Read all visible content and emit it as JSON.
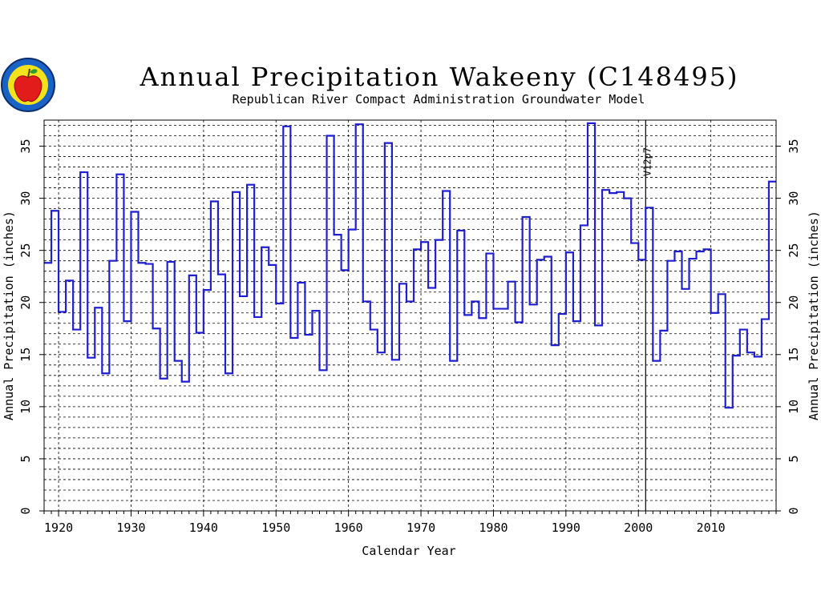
{
  "chart_data": {
    "type": "line",
    "step": true,
    "title": "Annual Precipitation Wakeeny (C148495)",
    "subtitle": "Republican River Compact Administration Groundwater Model",
    "xlabel": "Calendar Year",
    "ylabel": "Annual Precipitation (inches)",
    "y2label": "Annual Precipitation (inches)",
    "xlim": [
      1918,
      2019
    ],
    "ylim": [
      0,
      37.5
    ],
    "grid": true,
    "xticks": [
      "1920",
      "1930",
      "1940",
      "1950",
      "1960",
      "1970",
      "1980",
      "1990",
      "2000",
      "2010"
    ],
    "yticks": [
      "0",
      "5",
      "10",
      "15",
      "20",
      "25",
      "30",
      "35"
    ],
    "series_color": "#1f1fcf",
    "annotation": {
      "label": "V12p7",
      "x": 2001
    },
    "x": [
      1918,
      1919,
      1920,
      1921,
      1922,
      1923,
      1924,
      1925,
      1926,
      1927,
      1928,
      1929,
      1930,
      1931,
      1932,
      1933,
      1934,
      1935,
      1936,
      1937,
      1938,
      1939,
      1940,
      1941,
      1942,
      1943,
      1944,
      1945,
      1946,
      1947,
      1948,
      1949,
      1950,
      1951,
      1952,
      1953,
      1954,
      1955,
      1956,
      1957,
      1958,
      1959,
      1960,
      1961,
      1962,
      1963,
      1964,
      1965,
      1966,
      1967,
      1968,
      1969,
      1970,
      1971,
      1972,
      1973,
      1974,
      1975,
      1976,
      1977,
      1978,
      1979,
      1980,
      1981,
      1982,
      1983,
      1984,
      1985,
      1986,
      1987,
      1988,
      1989,
      1990,
      1991,
      1992,
      1993,
      1994,
      1995,
      1996,
      1997,
      1998,
      1999,
      2000,
      2001,
      2002,
      2003,
      2004,
      2005,
      2006,
      2007,
      2008,
      2009,
      2010,
      2011,
      2012,
      2013,
      2014,
      2015,
      2016,
      2017,
      2018
    ],
    "values": [
      23.8,
      28.8,
      19.1,
      22.1,
      17.4,
      32.5,
      14.7,
      19.5,
      13.2,
      24.0,
      32.3,
      18.2,
      28.7,
      23.8,
      23.7,
      17.5,
      12.7,
      23.9,
      14.4,
      12.4,
      22.6,
      17.1,
      21.2,
      29.7,
      22.7,
      13.2,
      30.6,
      20.6,
      31.3,
      18.6,
      25.3,
      23.6,
      19.9,
      36.9,
      16.6,
      21.9,
      16.9,
      19.2,
      13.5,
      36.0,
      26.5,
      23.1,
      27.0,
      37.1,
      20.1,
      17.4,
      15.2,
      35.3,
      14.5,
      21.8,
      20.1,
      25.1,
      25.8,
      21.4,
      26.0,
      30.7,
      14.4,
      26.9,
      18.8,
      20.1,
      18.5,
      24.7,
      19.4,
      19.4,
      22.0,
      18.1,
      28.2,
      19.8,
      24.1,
      24.4,
      15.9,
      18.9,
      24.8,
      18.2,
      27.4,
      37.2,
      17.8,
      30.8,
      30.5,
      30.6,
      30.0,
      25.7,
      24.1,
      29.1,
      14.4,
      17.3,
      24.0,
      24.9,
      21.3,
      24.2,
      24.9,
      25.1,
      19.0,
      20.8,
      9.9,
      14.9,
      17.4,
      15.2,
      14.8,
      18.4,
      31.6
    ]
  }
}
